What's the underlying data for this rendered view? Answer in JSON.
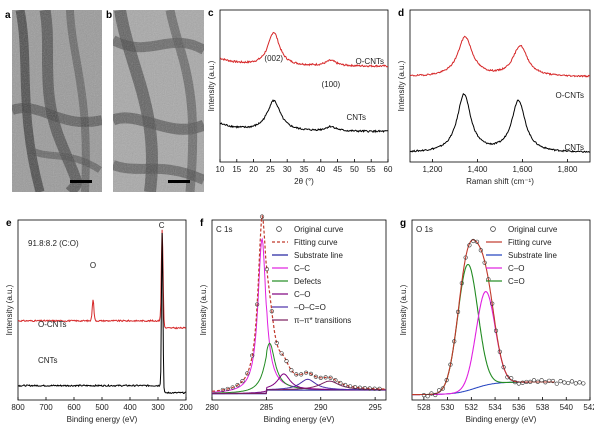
{
  "panel_labels": [
    "a",
    "b",
    "c",
    "d",
    "e",
    "f",
    "g"
  ],
  "colors": {
    "o_cnts": "#d62728",
    "cnts": "#000000",
    "fit": "#c0392b",
    "substrate": "#1f1f9e",
    "cc": "#2ca02c",
    "defects": "#2ca02c",
    "co": "#7f007f",
    "oco": "#4b2ea8",
    "pipi": "#7b1f5e",
    "green": "#228b22",
    "magenta": "#e020e0",
    "blue": "#1f3fbf"
  },
  "chart_data": [
    {
      "panel": "c",
      "type": "line",
      "xlabel": "2θ (°)",
      "ylabel": "Intensity (a.u.)",
      "xlim": [
        10,
        60
      ],
      "xticks": [
        "10",
        "15",
        "20",
        "25",
        "30",
        "35",
        "40",
        "45",
        "50",
        "55",
        "60"
      ],
      "annotations": [
        "(002)",
        "(100)"
      ],
      "series": [
        {
          "name": "O-CNTs",
          "peaks": [
            {
              "center": 26,
              "height": 0.22,
              "width": 1.3
            },
            {
              "center": 43,
              "height": 0.035,
              "width": 1.2
            }
          ],
          "baseline": 0.63
        },
        {
          "name": "CNTs",
          "peaks": [
            {
              "center": 26,
              "height": 0.2,
              "width": 1.5
            },
            {
              "center": 43,
              "height": 0.03,
              "width": 1.2
            }
          ],
          "baseline": 0.2
        }
      ]
    },
    {
      "panel": "d",
      "type": "line",
      "xlabel": "Raman shift (cm⁻¹)",
      "ylabel": "Intensity (a.u.)",
      "xlim": [
        1100,
        1900
      ],
      "xticks": [
        "1,200",
        "1,400",
        "1,600",
        "1,800"
      ],
      "series": [
        {
          "name": "O-CNTs",
          "peaks": [
            {
              "center": 1345,
              "height": 0.26,
              "width": 30
            },
            {
              "center": 1590,
              "height": 0.2,
              "width": 30
            }
          ],
          "baseline": 0.56
        },
        {
          "name": "CNTs",
          "peaks": [
            {
              "center": 1340,
              "height": 0.38,
              "width": 28
            },
            {
              "center": 1582,
              "height": 0.34,
              "width": 28
            }
          ],
          "baseline": 0.06
        }
      ]
    },
    {
      "panel": "e",
      "type": "line",
      "xlabel": "Binding energy (eV)",
      "ylabel": "Intensity (a.u.)",
      "xlim": [
        800,
        200
      ],
      "xticks": [
        "800",
        "700",
        "600",
        "500",
        "400",
        "300",
        "200"
      ],
      "annotations": [
        "91.8:8.2 (C:O)",
        "O",
        "C"
      ],
      "series": [
        {
          "name": "O-CNTs",
          "peaks": [
            {
              "center": 532,
              "height": 0.12,
              "width": 3
            },
            {
              "center": 285,
              "height": 0.55,
              "width": 3
            }
          ],
          "baseline": 0.42
        },
        {
          "name": "CNTs",
          "peaks": [
            {
              "center": 285,
              "height": 0.9,
              "width": 2.5
            }
          ],
          "baseline": 0.06
        }
      ]
    },
    {
      "panel": "f",
      "type": "line",
      "title": "C 1s",
      "xlabel": "Binding energy (eV)",
      "ylabel": "Intensity (a.u.)",
      "xlim": [
        280,
        296
      ],
      "xticks": [
        "280",
        "285",
        "290",
        "295"
      ],
      "legend": [
        "Original curve",
        "Fitting curve",
        "Substrate line",
        "C–C",
        "Defects",
        "C–O",
        "–O–C=O",
        "π–π* transitions"
      ],
      "components": [
        {
          "name": "C–C",
          "center": 284.6,
          "height": 0.86,
          "width": 0.45
        },
        {
          "name": "Defects",
          "center": 285.3,
          "height": 0.26,
          "width": 0.6
        },
        {
          "name": "C–O",
          "center": 286.6,
          "height": 0.09,
          "width": 0.7
        },
        {
          "name": "–O–C=O",
          "center": 288.8,
          "height": 0.06,
          "width": 0.9
        },
        {
          "name": "π–π* transitions",
          "center": 290.8,
          "height": 0.05,
          "width": 1.1
        }
      ]
    },
    {
      "panel": "g",
      "type": "line",
      "title": "O 1s",
      "xlabel": "Binding energy (eV)",
      "ylabel": "Intensity (a.u.)",
      "xlim": [
        527,
        542
      ],
      "xticks": [
        "528",
        "530",
        "532",
        "534",
        "536",
        "538",
        "540",
        "542"
      ],
      "legend": [
        "Original curve",
        "Fitting curve",
        "Substrate line",
        "C–O",
        "C=O"
      ],
      "components": [
        {
          "name": "C=O",
          "center": 531.7,
          "height": 0.7,
          "width": 0.85
        },
        {
          "name": "C–O",
          "center": 533.2,
          "height": 0.52,
          "width": 0.8
        }
      ]
    }
  ]
}
